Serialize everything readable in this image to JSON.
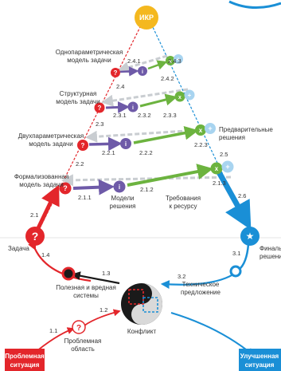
{
  "top": {
    "ikr": "ИКР"
  },
  "models": {
    "single_param": [
      "Однопараметрическая",
      "модель задачи"
    ],
    "structural": [
      "Структурная",
      "модель задачи"
    ],
    "two_param": [
      "Двухпараметрическая",
      "модель задачи"
    ],
    "formalized": [
      "Формализованная",
      "модель задачи"
    ],
    "solution_models": [
      "Модели",
      "решения"
    ],
    "resource_reqs": [
      "Требования",
      "к ресурсу"
    ]
  },
  "right_labels": {
    "preliminary": [
      "Предварительные",
      "решения"
    ],
    "final": [
      "Финальное",
      "решение"
    ],
    "tech_proposal": [
      "Техническое",
      "предложение"
    ]
  },
  "left_labels": {
    "task": "Задача",
    "useful_harmful": [
      "Полезная и вредная",
      "системы"
    ],
    "problem_area": [
      "Проблемная",
      "область"
    ],
    "conflict": "Конфликт"
  },
  "bottom_boxes": {
    "problem_situation": [
      "Проблемная",
      "ситуация"
    ],
    "improved_situation": [
      "Улучшенная",
      "ситуация"
    ]
  },
  "steps": {
    "s241": "2.4.1",
    "s242": "2.4.2",
    "s243": "2.4.3",
    "s24": "2.4",
    "s231": "2.3.1",
    "s232": "2.3.2",
    "s233": "2.3.3",
    "s23": "2.3",
    "s221": "2.2.1",
    "s222": "2.2.2",
    "s223": "2.2.3",
    "s22": "2.2",
    "s211": "2.1.1",
    "s212": "2.1.2",
    "s213": "2.1.3",
    "s21": "2.1",
    "s25": "2.5",
    "s26": "2.6",
    "s14": "1.4",
    "s13": "1.3",
    "s12": "1.2",
    "s11": "1.1",
    "s31": "3.1",
    "s32": "3.2"
  },
  "node_glyphs": {
    "question": "?",
    "info": "i",
    "check": "x",
    "plus": "+",
    "star": "★"
  },
  "colors": {
    "red": "#e3262b",
    "blue": "#1a8fd6",
    "gold": "#f4b81f",
    "purple": "#6e5aa8",
    "green": "#6cb33f",
    "grey": "#c9cdd1",
    "light_blue": "#a8d4f0"
  }
}
